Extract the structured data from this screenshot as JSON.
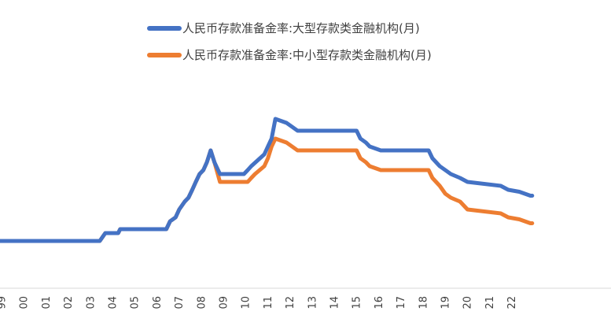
{
  "chart_data": {
    "type": "line",
    "title": "",
    "xlabel": "",
    "ylabel": "",
    "legend_position": "top-center",
    "grid": false,
    "x_ticks": [
      "99",
      "00",
      "01",
      "02",
      "03",
      "04",
      "05",
      "06",
      "07",
      "08",
      "09",
      "10",
      "11",
      "12",
      "13",
      "14",
      "15",
      "16",
      "17",
      "18",
      "19",
      "20",
      "21",
      "22"
    ],
    "xlim": [
      1999.0,
      2023.0
    ],
    "ylim": [
      0,
      24
    ],
    "series": [
      {
        "name": "人民币存款准备金率:大型存款类金融机构(月)",
        "color": "#4472C4",
        "points": [
          [
            1999.0,
            6.0
          ],
          [
            2003.5,
            6.0
          ],
          [
            2003.75,
            7.0
          ],
          [
            2004.33,
            7.0
          ],
          [
            2004.42,
            7.5
          ],
          [
            2006.5,
            7.5
          ],
          [
            2006.67,
            8.5
          ],
          [
            2006.92,
            9.0
          ],
          [
            2007.08,
            10.0
          ],
          [
            2007.33,
            11.0
          ],
          [
            2007.5,
            11.5
          ],
          [
            2007.67,
            12.5
          ],
          [
            2007.83,
            13.5
          ],
          [
            2008.0,
            14.5
          ],
          [
            2008.17,
            15.0
          ],
          [
            2008.33,
            16.0
          ],
          [
            2008.5,
            17.5
          ],
          [
            2008.67,
            16.0
          ],
          [
            2008.92,
            14.5
          ],
          [
            2010.0,
            14.5
          ],
          [
            2010.17,
            15.0
          ],
          [
            2010.33,
            15.5
          ],
          [
            2010.92,
            17.0
          ],
          [
            2011.08,
            18.0
          ],
          [
            2011.25,
            19.0
          ],
          [
            2011.42,
            21.5
          ],
          [
            2011.92,
            21.0
          ],
          [
            2012.17,
            20.5
          ],
          [
            2012.42,
            20.0
          ],
          [
            2015.08,
            20.0
          ],
          [
            2015.25,
            19.0
          ],
          [
            2015.5,
            18.5
          ],
          [
            2015.67,
            18.0
          ],
          [
            2016.17,
            17.5
          ],
          [
            2018.33,
            17.5
          ],
          [
            2018.5,
            16.5
          ],
          [
            2018.83,
            15.5
          ],
          [
            2019.08,
            15.0
          ],
          [
            2019.33,
            14.5
          ],
          [
            2019.75,
            14.0
          ],
          [
            2020.08,
            13.5
          ],
          [
            2021.58,
            13.0
          ],
          [
            2021.92,
            12.5
          ],
          [
            2022.42,
            12.25
          ],
          [
            2022.92,
            11.75
          ],
          [
            2023.0,
            11.75
          ]
        ]
      },
      {
        "name": "人民币存款准备金率:中小型存款类金融机构(月)",
        "color": "#ED7D31",
        "points": [
          [
            1999.0,
            6.0
          ],
          [
            2003.5,
            6.0
          ],
          [
            2003.75,
            7.0
          ],
          [
            2004.33,
            7.0
          ],
          [
            2004.42,
            7.5
          ],
          [
            2006.5,
            7.5
          ],
          [
            2006.67,
            8.5
          ],
          [
            2006.92,
            9.0
          ],
          [
            2007.08,
            10.0
          ],
          [
            2007.33,
            11.0
          ],
          [
            2007.5,
            11.5
          ],
          [
            2007.67,
            12.5
          ],
          [
            2007.83,
            13.5
          ],
          [
            2008.0,
            14.5
          ],
          [
            2008.17,
            15.0
          ],
          [
            2008.33,
            16.0
          ],
          [
            2008.5,
            17.5
          ],
          [
            2008.67,
            16.0
          ],
          [
            2008.92,
            13.5
          ],
          [
            2010.17,
            13.5
          ],
          [
            2010.33,
            14.0
          ],
          [
            2010.5,
            14.5
          ],
          [
            2010.92,
            15.5
          ],
          [
            2011.08,
            16.5
          ],
          [
            2011.25,
            18.0
          ],
          [
            2011.42,
            19.0
          ],
          [
            2011.92,
            18.5
          ],
          [
            2012.17,
            18.0
          ],
          [
            2012.42,
            17.5
          ],
          [
            2015.08,
            17.5
          ],
          [
            2015.25,
            16.5
          ],
          [
            2015.5,
            16.0
          ],
          [
            2015.67,
            15.5
          ],
          [
            2016.17,
            15.0
          ],
          [
            2018.33,
            15.0
          ],
          [
            2018.5,
            14.0
          ],
          [
            2018.83,
            13.0
          ],
          [
            2019.08,
            12.0
          ],
          [
            2019.33,
            11.5
          ],
          [
            2019.75,
            11.0
          ],
          [
            2020.08,
            10.0
          ],
          [
            2021.58,
            9.5
          ],
          [
            2021.92,
            9.0
          ],
          [
            2022.42,
            8.75
          ],
          [
            2022.92,
            8.25
          ],
          [
            2023.0,
            8.25
          ]
        ]
      }
    ]
  }
}
